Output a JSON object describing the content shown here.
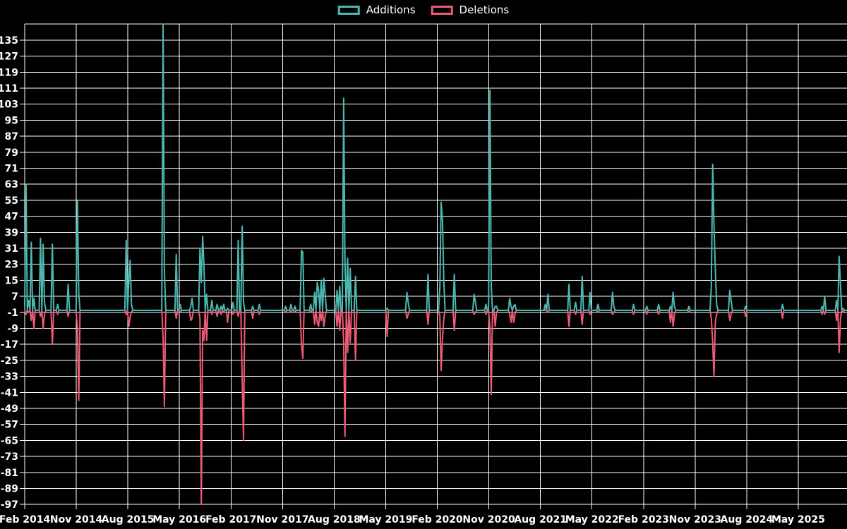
{
  "legend": {
    "additions_label": "Additions",
    "deletions_label": "Deletions"
  },
  "colors": {
    "background": "#000000",
    "grid": "#ffffff",
    "text": "#ffffff",
    "additions": "#4CB8B0",
    "deletions": "#EF5B77"
  },
  "chart_data": {
    "type": "line",
    "title": "",
    "xlabel": "",
    "ylabel": "",
    "legend_position": "top-center",
    "grid": true,
    "ylim": [
      -97,
      143
    ],
    "y_step": 8,
    "y_gridline_top": 143,
    "y_tick_labels": [
      135,
      127,
      119,
      111,
      103,
      95,
      87,
      79,
      71,
      63,
      55,
      47,
      39,
      31,
      23,
      15,
      7,
      -1,
      -9,
      -17,
      -25,
      -33,
      -41,
      -49,
      -57,
      -65,
      -73,
      -81,
      -89,
      -97
    ],
    "x_tick_labels": [
      "Feb 2014",
      "Nov 2014",
      "Aug 2015",
      "May 2016",
      "Feb 2017",
      "Nov 2017",
      "Aug 2018",
      "May 2019",
      "Feb 2020",
      "Nov 2020",
      "Aug 2021",
      "May 2022",
      "Feb 2023",
      "Nov 2023",
      "Aug 2024",
      "May 2025"
    ],
    "x_unit": "weeks since Feb 2014",
    "weeks_per_tick": 39.13,
    "weeks_total": 625,
    "series": [
      {
        "name": "Additions",
        "color": "#4CB8B0",
        "sign": "positive"
      },
      {
        "name": "Deletions",
        "color": "#EF5B77",
        "sign": "negative"
      }
    ],
    "points_format": [
      "week_index",
      "additions",
      "deletions"
    ],
    "points_note": "sparse weekly points; every week not listed is [w, 0, 0]",
    "points": [
      [
        0,
        2,
        0
      ],
      [
        1,
        63,
        -2
      ],
      [
        3,
        5,
        -1
      ],
      [
        5,
        34,
        -5
      ],
      [
        7,
        6,
        -9
      ],
      [
        12,
        36,
        -3
      ],
      [
        14,
        33,
        -9
      ],
      [
        15,
        4,
        -2
      ],
      [
        21,
        33,
        -17
      ],
      [
        25,
        3,
        -2
      ],
      [
        33,
        13,
        -3
      ],
      [
        40,
        55,
        -9
      ],
      [
        41,
        8,
        -45
      ],
      [
        77,
        35,
        -2
      ],
      [
        79,
        14,
        -8
      ],
      [
        80,
        25,
        -3
      ],
      [
        81,
        3,
        -1
      ],
      [
        105,
        143,
        -14
      ],
      [
        106,
        20,
        -48
      ],
      [
        115,
        28,
        -4
      ],
      [
        118,
        3,
        -1
      ],
      [
        126,
        2,
        -5
      ],
      [
        127,
        6,
        -4
      ],
      [
        133,
        31,
        -4
      ],
      [
        134,
        14,
        -97
      ],
      [
        135,
        37,
        -10
      ],
      [
        136,
        23,
        -15
      ],
      [
        138,
        8,
        -15
      ],
      [
        142,
        5,
        -2
      ],
      [
        146,
        3,
        -3
      ],
      [
        149,
        2,
        -2
      ],
      [
        151,
        3,
        -1
      ],
      [
        154,
        1,
        -6
      ],
      [
        158,
        4,
        -2
      ],
      [
        162,
        35,
        -3
      ],
      [
        165,
        42,
        -34
      ],
      [
        166,
        4,
        -65
      ],
      [
        173,
        2,
        -4
      ],
      [
        178,
        3,
        -2
      ],
      [
        198,
        2,
        -1
      ],
      [
        202,
        3,
        -1
      ],
      [
        205,
        2,
        -1
      ],
      [
        210,
        30,
        -17
      ],
      [
        211,
        29,
        -24
      ],
      [
        217,
        3,
        -1
      ],
      [
        220,
        9,
        -7
      ],
      [
        222,
        14,
        -6
      ],
      [
        223,
        10,
        -8
      ],
      [
        225,
        15,
        -5
      ],
      [
        227,
        16,
        -8
      ],
      [
        228,
        8,
        -3
      ],
      [
        237,
        10,
        -8
      ],
      [
        239,
        12,
        -10
      ],
      [
        242,
        106,
        -16
      ],
      [
        243,
        25,
        -63
      ],
      [
        245,
        26,
        -21
      ],
      [
        247,
        21,
        -16
      ],
      [
        251,
        17,
        -25
      ],
      [
        275,
        1,
        -13
      ],
      [
        290,
        9,
        -4
      ],
      [
        291,
        4,
        -2
      ],
      [
        306,
        18,
        -7
      ],
      [
        315,
        12,
        -3
      ],
      [
        316,
        54,
        -30
      ],
      [
        317,
        45,
        -14
      ],
      [
        318,
        14,
        -4
      ],
      [
        326,
        18,
        -10
      ],
      [
        341,
        8,
        -2
      ],
      [
        342,
        4,
        -1
      ],
      [
        350,
        3,
        -2
      ],
      [
        353,
        110,
        -9
      ],
      [
        354,
        12,
        -42
      ],
      [
        357,
        2,
        -8
      ],
      [
        358,
        2,
        -1
      ],
      [
        368,
        6,
        -2
      ],
      [
        369,
        2,
        -6
      ],
      [
        371,
        2,
        -6
      ],
      [
        372,
        3,
        -2
      ],
      [
        395,
        3,
        0
      ],
      [
        397,
        8,
        -1
      ],
      [
        413,
        13,
        -8
      ],
      [
        418,
        4,
        -2
      ],
      [
        423,
        17,
        -7
      ],
      [
        429,
        9,
        -2
      ],
      [
        435,
        3,
        -1
      ],
      [
        446,
        9,
        -2
      ],
      [
        447,
        2,
        -1
      ],
      [
        462,
        3,
        -2
      ],
      [
        472,
        2,
        -2
      ],
      [
        481,
        3,
        -2
      ],
      [
        490,
        2,
        -6
      ],
      [
        492,
        9,
        -8
      ],
      [
        493,
        2,
        -2
      ],
      [
        504,
        2,
        -1
      ],
      [
        521,
        12,
        -4
      ],
      [
        522,
        73,
        -16
      ],
      [
        523,
        43,
        -33
      ],
      [
        524,
        21,
        -6
      ],
      [
        525,
        3,
        -2
      ],
      [
        535,
        10,
        -5
      ],
      [
        536,
        5,
        -2
      ],
      [
        547,
        2,
        -3
      ],
      [
        575,
        3,
        -4
      ],
      [
        605,
        2,
        -2
      ],
      [
        607,
        7,
        -2
      ],
      [
        616,
        5,
        -5
      ],
      [
        618,
        27,
        -21
      ],
      [
        619,
        12,
        -4
      ],
      [
        621,
        1,
        -1
      ]
    ]
  }
}
